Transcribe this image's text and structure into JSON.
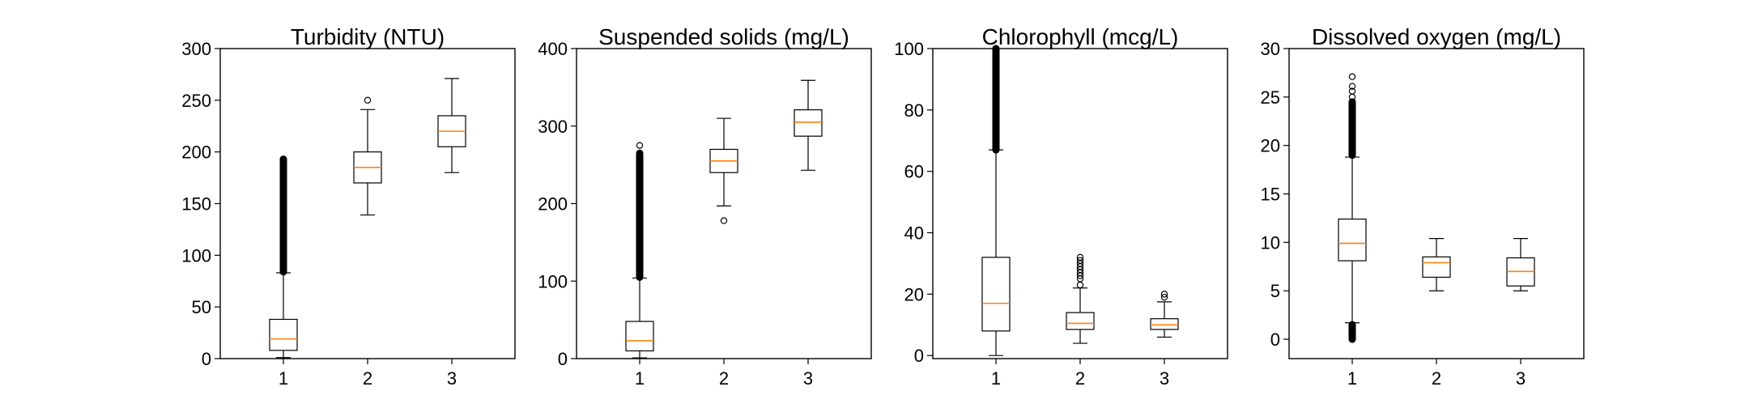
{
  "chart_data": [
    {
      "type": "box",
      "title": "Turbidity (NTU)",
      "ylim": [
        0,
        300
      ],
      "yticks": [
        "0",
        "50",
        "100",
        "150",
        "200",
        "250",
        "300"
      ],
      "categories": [
        "1",
        "2",
        "3"
      ],
      "boxes": [
        {
          "whisker_low": 1,
          "q1": 8,
          "median": 19,
          "q3": 38,
          "whisker_high": 83,
          "outliers": [],
          "dense_outliers": [
            84,
            193
          ]
        },
        {
          "whisker_low": 139,
          "q1": 170,
          "median": 185,
          "q3": 200,
          "whisker_high": 241,
          "outliers": [
            250
          ],
          "dense_outliers": null
        },
        {
          "whisker_low": 180,
          "q1": 205,
          "median": 220,
          "q3": 235,
          "whisker_high": 271,
          "outliers": [],
          "dense_outliers": null
        }
      ]
    },
    {
      "type": "box",
      "title": "Suspended solids (mg/L)",
      "ylim": [
        0,
        400
      ],
      "yticks": [
        "0",
        "100",
        "200",
        "300",
        "400"
      ],
      "categories": [
        "1",
        "2",
        "3"
      ],
      "boxes": [
        {
          "whisker_low": 1,
          "q1": 10,
          "median": 23,
          "q3": 48,
          "whisker_high": 104,
          "outliers": [
            275
          ],
          "dense_outliers": [
            105,
            265
          ]
        },
        {
          "whisker_low": 197,
          "q1": 240,
          "median": 255,
          "q3": 270,
          "whisker_high": 310,
          "outliers": [
            178
          ],
          "dense_outliers": null
        },
        {
          "whisker_low": 243,
          "q1": 287,
          "median": 305,
          "q3": 321,
          "whisker_high": 359,
          "outliers": [],
          "dense_outliers": null
        }
      ]
    },
    {
      "type": "box",
      "title": "Chlorophyll (mcg/L)",
      "ylim": [
        0,
        100
      ],
      "yticks": [
        "0",
        "20",
        "40",
        "60",
        "80",
        "100"
      ],
      "categories": [
        "1",
        "2",
        "3"
      ],
      "boxes": [
        {
          "whisker_low": 0,
          "q1": 8,
          "median": 17,
          "q3": 32,
          "whisker_high": 67,
          "outliers": [],
          "dense_outliers": [
            67,
            100
          ]
        },
        {
          "whisker_low": 4,
          "q1": 8.5,
          "median": 10.5,
          "q3": 14,
          "whisker_high": 22,
          "outliers": [
            23,
            25,
            26,
            27,
            28,
            29,
            30,
            31,
            32
          ],
          "dense_outliers": null
        },
        {
          "whisker_low": 6,
          "q1": 8.5,
          "median": 10,
          "q3": 12,
          "whisker_high": 17.5,
          "outliers": [
            19,
            20
          ],
          "dense_outliers": null
        }
      ]
    },
    {
      "type": "box",
      "title": "Dissolved oxygen (mg/L)",
      "ylim": [
        0,
        30
      ],
      "yticks": [
        "0",
        "5",
        "10",
        "15",
        "20",
        "25",
        "30"
      ],
      "categories": [
        "1",
        "2",
        "3"
      ],
      "boxes": [
        {
          "whisker_low": 1.7,
          "q1": 8.1,
          "median": 9.9,
          "q3": 12.4,
          "whisker_high": 18.8,
          "outliers": [
            25,
            25.6,
            26.1,
            27.1
          ],
          "dense_outliers": [
            19,
            24.5
          ],
          "dense_outliers_low": [
            0,
            1.5
          ]
        },
        {
          "whisker_low": 5,
          "q1": 6.4,
          "median": 7.9,
          "q3": 8.5,
          "whisker_high": 10.4,
          "outliers": [],
          "dense_outliers": null
        },
        {
          "whisker_low": 5,
          "q1": 5.5,
          "median": 7,
          "q3": 8.4,
          "whisker_high": 10.4,
          "outliers": [],
          "dense_outliers": null
        }
      ]
    }
  ],
  "colors": {
    "median": "#ff7f0e",
    "line": "#000000"
  }
}
